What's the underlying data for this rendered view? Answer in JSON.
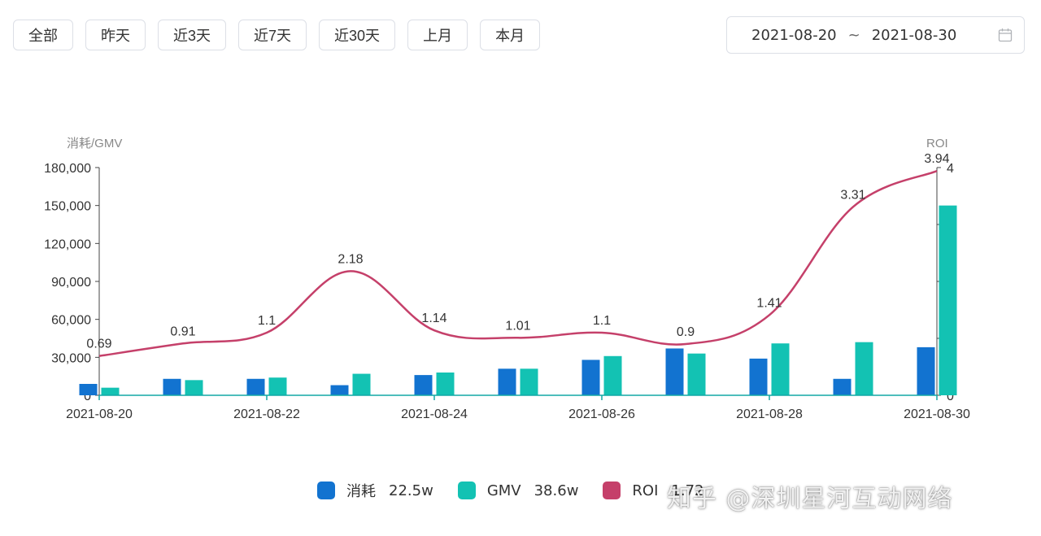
{
  "filters": [
    "全部",
    "昨天",
    "近3天",
    "近7天",
    "近30天",
    "上月",
    "本月"
  ],
  "date_range": {
    "start": "2021-08-20",
    "separator": "~",
    "end": "2021-08-30"
  },
  "icons": {
    "date_picker": "calendar-icon"
  },
  "colors": {
    "consume": "#1273d0",
    "gmv": "#13c2b3",
    "roi": "#c5406a"
  },
  "chart_data": {
    "type": "bar",
    "x": [
      "2021-08-20",
      "2021-08-21",
      "2021-08-22",
      "2021-08-23",
      "2021-08-24",
      "2021-08-25",
      "2021-08-26",
      "2021-08-27",
      "2021-08-28",
      "2021-08-29",
      "2021-08-30"
    ],
    "x_tick_labels": [
      "2021-08-20",
      "2021-08-22",
      "2021-08-24",
      "2021-08-26",
      "2021-08-28",
      "2021-08-30"
    ],
    "y_left": {
      "label": "消耗/GMV",
      "range": [
        0,
        180000
      ],
      "ticks": [
        "0",
        "30,000",
        "60,000",
        "90,000",
        "120,000",
        "150,000",
        "180,000"
      ]
    },
    "y_right": {
      "label": "ROI",
      "range": [
        0,
        4
      ],
      "ticks": [
        "0",
        "1",
        "2",
        "3",
        "4"
      ]
    },
    "series": [
      {
        "name": "消耗",
        "type": "bar",
        "values": [
          9000,
          13000,
          13000,
          8000,
          16000,
          21000,
          28000,
          37000,
          29000,
          13000,
          38000
        ]
      },
      {
        "name": "GMV",
        "type": "bar",
        "values": [
          6000,
          12000,
          14000,
          17000,
          18000,
          21000,
          31000,
          33000,
          41000,
          42000,
          150000
        ]
      },
      {
        "name": "ROI",
        "type": "line",
        "smooth": true,
        "axis": "right",
        "values": [
          0.69,
          0.91,
          1.1,
          2.18,
          1.14,
          1.01,
          1.1,
          0.9,
          1.41,
          3.31,
          3.94
        ],
        "labels": [
          "0.69",
          "0.91",
          "1.1",
          "2.18",
          "1.14",
          "1.01",
          "1.1",
          "0.9",
          "1.41",
          "3.31",
          "3.94"
        ]
      }
    ],
    "legend": {
      "position": "bottom-center",
      "items": [
        {
          "name": "消耗",
          "total": "22.5w"
        },
        {
          "name": "GMV",
          "total": "38.6w"
        },
        {
          "name": "ROI",
          "total": "1.72"
        }
      ]
    },
    "grid": false
  },
  "watermark": "知乎 @深圳星河互动网络"
}
